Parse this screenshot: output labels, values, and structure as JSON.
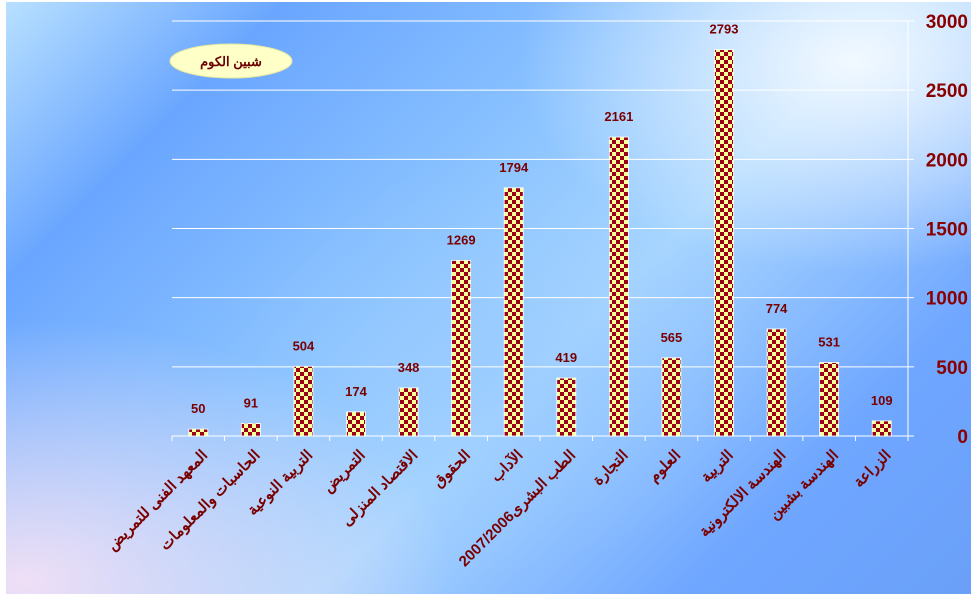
{
  "chart_data": {
    "type": "bar",
    "legend": "شبين الكوم",
    "legend_position": "top-left",
    "categories": [
      "المعهد الفنى للتمريض",
      "الحاسبات والمعلومات",
      "التربية النوعية",
      "التمريض",
      "الاقتصاد المنزلى",
      "الحقوق",
      "الآداب",
      "الطب البشرى2007/2006",
      "التجارة",
      "العلوم",
      "التربية",
      "الهندسة الالكترونية",
      "الهندسة بشبين",
      "الزراعة"
    ],
    "values": [
      50,
      91,
      504,
      174,
      348,
      1269,
      1794,
      419,
      2161,
      565,
      2793,
      774,
      531,
      109
    ],
    "ylim": [
      0,
      3000
    ],
    "yticks": [
      "0",
      "500",
      "1000",
      "1500",
      "2000",
      "2500",
      "3000"
    ],
    "y_axis_side": "right",
    "grid": true,
    "colors": {
      "bar_a": "#9b0019",
      "bar_b": "#ffff9a",
      "text": "#8a0000",
      "legend_fill": "#ffffc8"
    }
  }
}
